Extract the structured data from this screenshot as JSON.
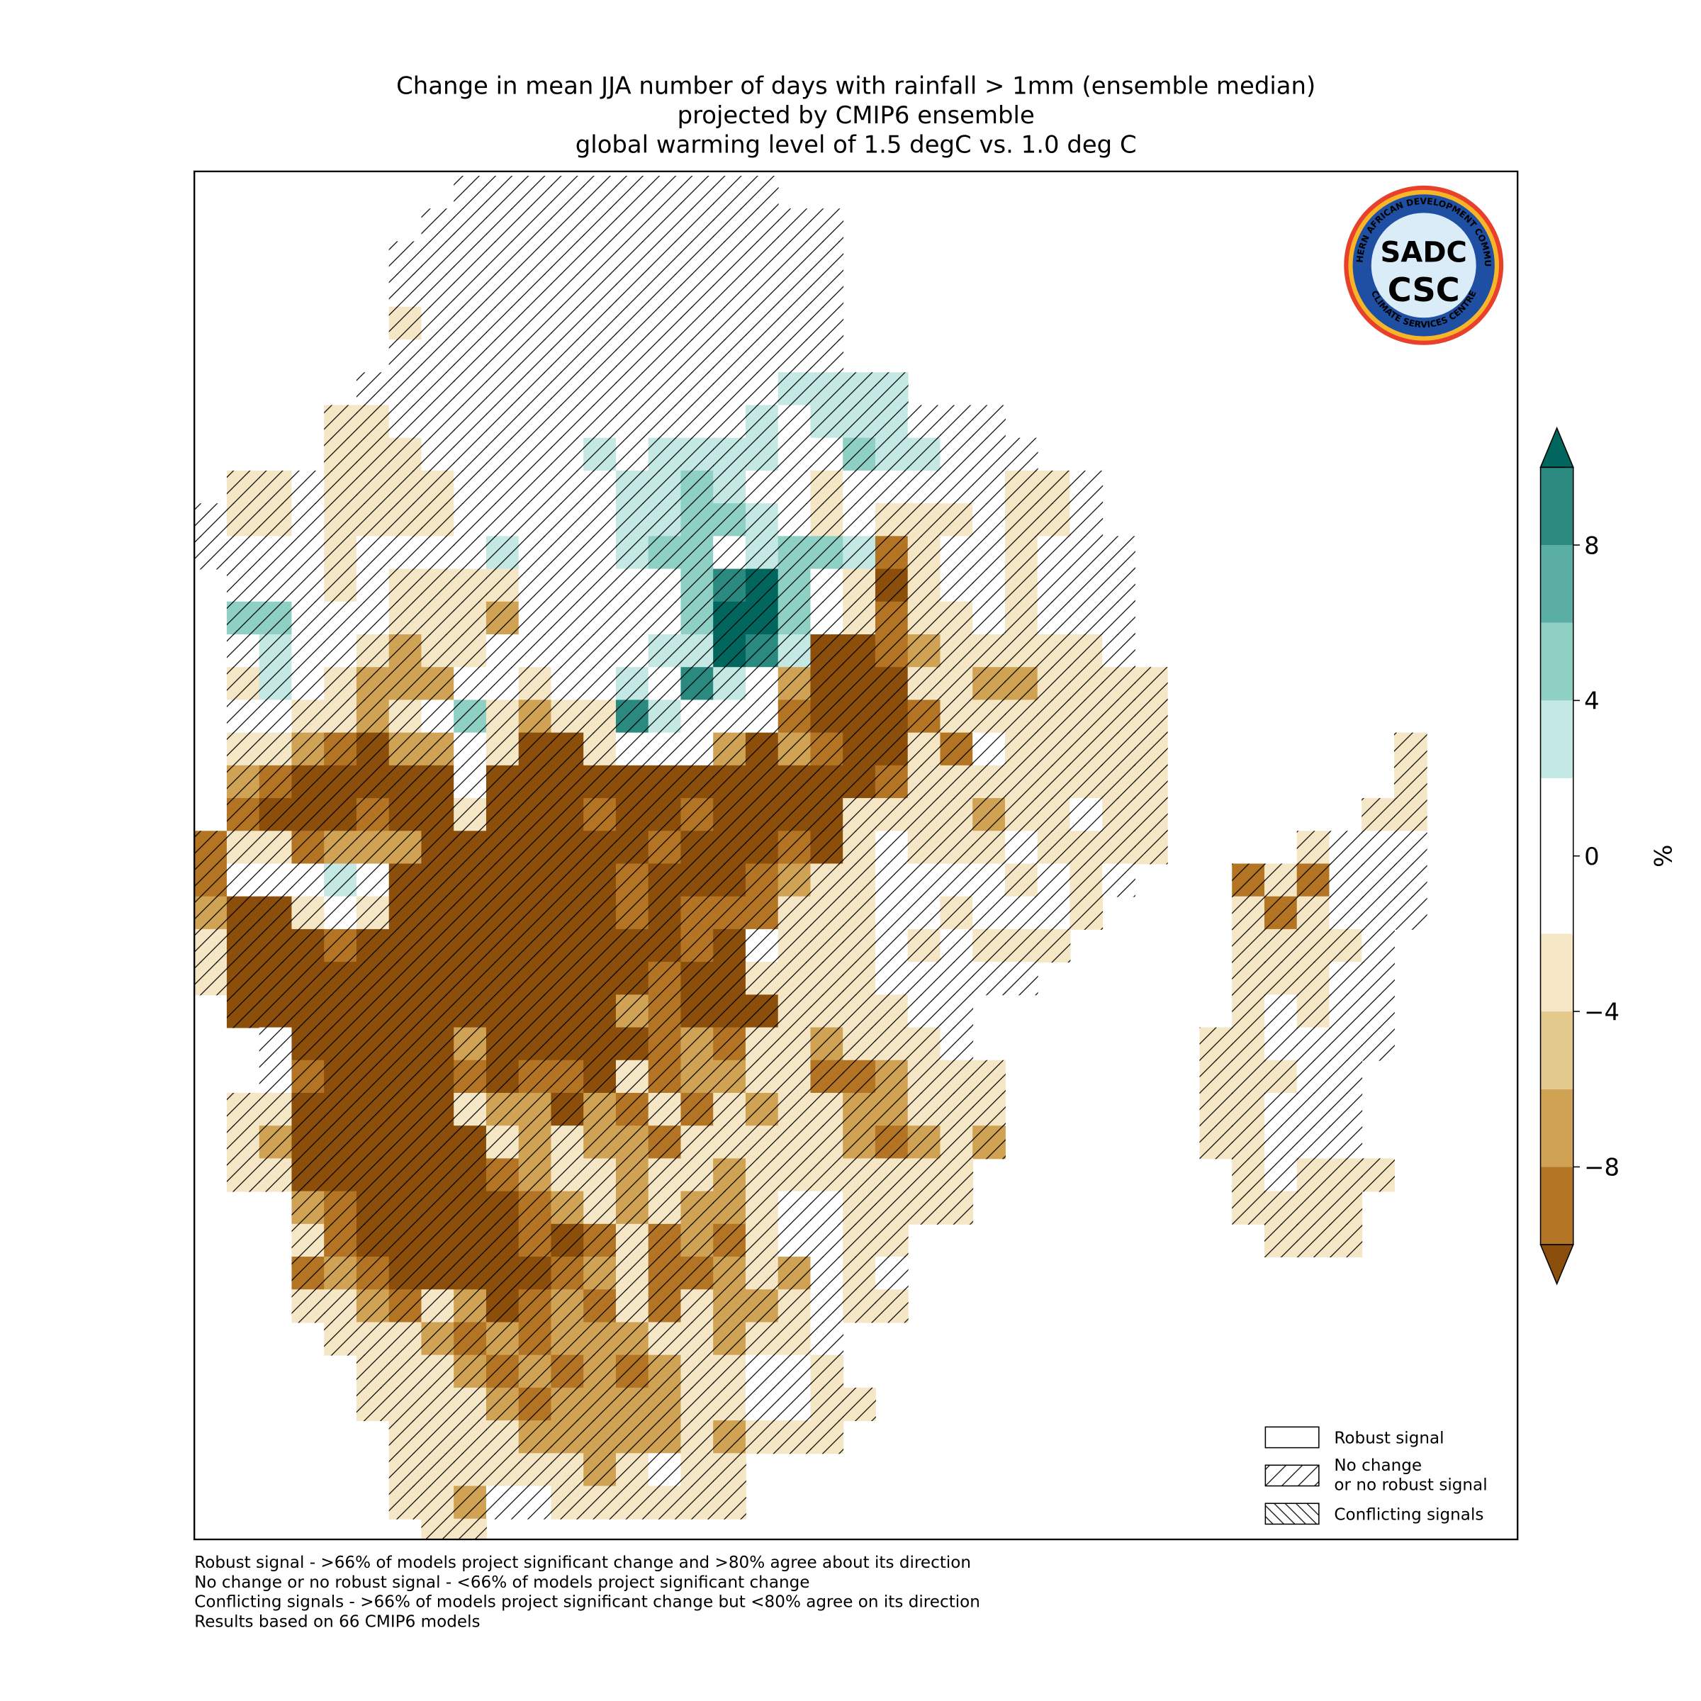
{
  "map": {
    "title": [
      "Change in mean JJA number of days with rainfall > 1mm (ensemble median)",
      "projected by CMIP6 ensemble",
      "global warming level of 1.5 degC vs. 1.0 deg C"
    ],
    "colorbar": {
      "levels": [
        -10,
        -8,
        -6,
        -4,
        -2,
        0,
        2,
        4,
        6,
        8,
        10
      ],
      "colors": [
        "#b37424",
        "#d0a253",
        "#e3c98b",
        "#f5e6c6",
        "#ffffff",
        "#ffffff",
        "#c4e8e3",
        "#8fd0c5",
        "#5aaea3",
        "#2a8a80"
      ],
      "under": "#8b4f0b",
      "over": "#01665e",
      "ticks": [
        {
          "value": -8,
          "label": "−8"
        },
        {
          "value": -4,
          "label": "−4"
        },
        0,
        4,
        8
      ],
      "label": "%"
    },
    "legend": [
      {
        "lines": [
          "Robust signal"
        ]
      },
      {
        "lines": [
          "No change",
          "or no robust signal"
        ]
      },
      {
        "lines": [
          "Conflicting signals"
        ]
      }
    ],
    "notes": [
      "Robust signal - >66% of models project significant change and >80% agree about its direction",
      "No change or no robust signal - <66% of models project significant change",
      "Conflicting signals - >66% of models project significant change but <80% agree on its direction",
      "Results based on 66 CMIP6 models"
    ],
    "logo": {
      "top": "SADC",
      "bottom": "CSC",
      "ring": [
        "SOUTHERN AFRICAN DEVELOPMENT COMMUNITY",
        "CLIMATE SERVICES CENTRE"
      ]
    },
    "grid": [
      [
        null,
        null,
        null,
        null,
        null,
        null,
        null,
        null,
        0,
        0,
        0,
        0,
        0,
        0,
        0,
        0,
        0,
        0
      ],
      [
        null,
        null,
        null,
        null,
        null,
        null,
        null,
        0,
        0,
        0,
        0,
        0,
        0,
        0,
        0,
        0,
        0,
        0,
        0,
        0
      ],
      [
        null,
        null,
        null,
        null,
        null,
        null,
        0,
        0,
        0,
        0,
        0,
        0,
        0,
        0,
        0,
        0,
        0,
        0,
        0,
        0
      ],
      [
        null,
        null,
        null,
        null,
        null,
        null,
        0,
        0,
        0,
        0,
        0,
        0,
        0,
        0,
        0,
        0,
        0,
        0,
        0,
        0
      ],
      [
        null,
        null,
        null,
        null,
        null,
        null,
        -3,
        0,
        0,
        0,
        0,
        0,
        0,
        0,
        0,
        0,
        0,
        0,
        0,
        0
      ],
      [
        null,
        null,
        null,
        null,
        null,
        null,
        0,
        0,
        0,
        0,
        0,
        0,
        0,
        0,
        0,
        0,
        0,
        0,
        0,
        0
      ],
      [
        null,
        null,
        null,
        null,
        null,
        0,
        0,
        0,
        0,
        0,
        0,
        0,
        0,
        0,
        0,
        0,
        0,
        0,
        3,
        3,
        3,
        3
      ],
      [
        null,
        null,
        null,
        null,
        -3,
        -3,
        0,
        0,
        0,
        0,
        0,
        0,
        0,
        0,
        0,
        0,
        0,
        3,
        0,
        3,
        3,
        3,
        0,
        0,
        0
      ],
      [
        null,
        null,
        null,
        null,
        -3,
        -3,
        -3,
        0,
        0,
        0,
        0,
        0,
        3,
        0,
        3,
        3,
        3,
        3,
        0,
        0,
        5,
        3,
        3,
        0,
        0,
        0
      ],
      [
        null,
        -3,
        -3,
        0,
        -3,
        -3,
        -3,
        -3,
        0,
        0,
        0,
        0,
        0,
        3,
        3,
        5,
        3,
        0,
        0,
        -3,
        0,
        0,
        0,
        0,
        0,
        -3,
        -3,
        0
      ],
      [
        0,
        -3,
        -3,
        0,
        -3,
        -3,
        -3,
        -3,
        0,
        0,
        0,
        0,
        0,
        3,
        3,
        5,
        5,
        3,
        0,
        -3,
        0,
        -3,
        -3,
        -3,
        0,
        -3,
        -3,
        0
      ],
      [
        0,
        0,
        0,
        0,
        -3,
        0,
        0,
        0,
        0,
        3,
        0,
        0,
        0,
        3,
        5,
        5,
        0,
        3,
        5,
        5,
        3,
        -9,
        -3,
        0,
        0,
        -3,
        0,
        0,
        0
      ],
      [
        null,
        0,
        0,
        0,
        -3,
        0,
        -3,
        -3,
        -3,
        -3,
        0,
        0,
        0,
        0,
        0,
        5,
        9,
        11,
        5,
        0,
        -3,
        -11,
        -3,
        0,
        0,
        -3,
        0,
        0,
        0
      ],
      [
        null,
        5,
        5,
        0,
        0,
        0,
        -3,
        -3,
        -3,
        -7,
        0,
        0,
        0,
        0,
        0,
        5,
        11,
        11,
        5,
        0,
        -3,
        -9,
        -3,
        -3,
        0,
        -3,
        0,
        0,
        0
      ],
      [
        null,
        0,
        3,
        0,
        0,
        -3,
        -7,
        -3,
        -3,
        0,
        0,
        0,
        0,
        0,
        3,
        3,
        11,
        9,
        3,
        -11,
        -11,
        -9,
        -7,
        -3,
        -3,
        -3,
        -3,
        -3,
        0
      ],
      [
        null,
        -3,
        3,
        0,
        -3,
        -7,
        -7,
        -7,
        0,
        0,
        -3,
        0,
        0,
        3,
        0,
        9,
        3,
        0,
        -7,
        -11,
        -11,
        -11,
        -3,
        -3,
        -7,
        -7,
        -3,
        -3,
        -3,
        -3
      ],
      [
        null,
        0,
        0,
        -3,
        -3,
        -7,
        -3,
        0,
        5,
        -3,
        -7,
        -3,
        -3,
        9,
        3,
        0,
        0,
        0,
        -9,
        -11,
        -11,
        -11,
        -9,
        -3,
        -3,
        -3,
        -3,
        -3,
        -3,
        -3
      ],
      [
        null,
        -3,
        -3,
        -7,
        -9,
        -11,
        -7,
        -7,
        0,
        -3,
        -11,
        -11,
        -3,
        0,
        0,
        0,
        -7,
        -11,
        -7,
        -9,
        -11,
        -11,
        -3,
        -9,
        0,
        -3,
        -3,
        -3,
        -3,
        -3,
        null,
        null,
        null,
        null,
        null,
        null,
        null,
        -3
      ],
      [
        null,
        -7,
        -9,
        -11,
        -11,
        -11,
        -11,
        -11,
        0,
        -11,
        -11,
        -11,
        -11,
        -11,
        -11,
        -11,
        -11,
        -11,
        -11,
        -11,
        -11,
        -9,
        -3,
        -3,
        -3,
        -3,
        -3,
        -3,
        -3,
        -3,
        null,
        null,
        null,
        null,
        null,
        null,
        null,
        -3
      ],
      [
        null,
        -9,
        -11,
        -11,
        -11,
        -9,
        -11,
        -11,
        -3,
        -11,
        -11,
        -11,
        -9,
        -11,
        -11,
        -9,
        -11,
        -11,
        -11,
        -11,
        -3,
        -3,
        -3,
        -3,
        -7,
        -3,
        -3,
        0,
        -3,
        -3,
        null,
        null,
        null,
        null,
        null,
        null,
        -3,
        -3
      ],
      [
        -9,
        -3,
        -3,
        -9,
        -7,
        -7,
        -7,
        -11,
        -11,
        -11,
        -11,
        -11,
        -11,
        -11,
        -9,
        -11,
        -11,
        -11,
        -9,
        -11,
        -3,
        0,
        -3,
        -3,
        -3,
        0,
        -3,
        -3,
        -3,
        -3,
        null,
        null,
        null,
        null,
        -3,
        0,
        0,
        0
      ],
      [
        -9,
        0,
        0,
        0,
        3,
        0,
        -11,
        -11,
        -11,
        -11,
        -11,
        -11,
        -11,
        -9,
        -11,
        -11,
        -11,
        -9,
        -7,
        -3,
        -3,
        0,
        0,
        0,
        0,
        -3,
        0,
        -3,
        0,
        null,
        null,
        null,
        -9,
        -3,
        -9,
        0,
        0,
        0
      ],
      [
        -7,
        -11,
        -11,
        -3,
        0,
        -3,
        -11,
        -11,
        -11,
        -11,
        -11,
        -11,
        -11,
        -9,
        -11,
        -9,
        -9,
        -9,
        -3,
        -3,
        -3,
        0,
        0,
        -3,
        0,
        0,
        0,
        -3,
        null,
        null,
        null,
        null,
        -3,
        -9,
        -3,
        0,
        0,
        0
      ],
      [
        -3,
        -11,
        -11,
        -11,
        -9,
        -11,
        -11,
        -11,
        -11,
        -11,
        -11,
        -11,
        -11,
        -11,
        -11,
        -9,
        -11,
        0,
        -3,
        -3,
        -3,
        0,
        -3,
        0,
        -3,
        -3,
        -3,
        null,
        null,
        null,
        null,
        null,
        -3,
        -3,
        -3,
        -3,
        0
      ],
      [
        -3,
        -11,
        -11,
        -11,
        -11,
        -11,
        -11,
        -11,
        -11,
        -11,
        -11,
        -11,
        -11,
        -11,
        -9,
        -11,
        -11,
        -3,
        -3,
        -3,
        -3,
        0,
        0,
        0,
        0,
        0,
        null,
        null,
        null,
        null,
        null,
        null,
        -3,
        -3,
        -3,
        0,
        0
      ],
      [
        null,
        -11,
        -11,
        -11,
        -11,
        -11,
        -11,
        -11,
        -11,
        -11,
        -11,
        -11,
        -11,
        -7,
        -9,
        -11,
        -11,
        -11,
        -3,
        -3,
        -3,
        -3,
        0,
        0,
        null,
        null,
        null,
        null,
        null,
        null,
        null,
        null,
        -3,
        0,
        -3,
        0,
        0
      ],
      [
        null,
        null,
        0,
        -11,
        -11,
        -11,
        -11,
        -11,
        -7,
        -11,
        -11,
        -11,
        -11,
        -11,
        -9,
        -7,
        -9,
        -3,
        -3,
        -7,
        -3,
        -3,
        -3,
        0,
        null,
        null,
        null,
        null,
        null,
        null,
        null,
        -3,
        -3,
        0,
        0,
        0,
        0
      ],
      [
        null,
        null,
        0,
        -9,
        -11,
        -11,
        -11,
        -11,
        -9,
        -11,
        -9,
        -9,
        -11,
        -3,
        -9,
        -7,
        -7,
        -3,
        -3,
        -9,
        -9,
        -7,
        -3,
        -3,
        -3,
        null,
        null,
        null,
        null,
        null,
        null,
        -3,
        -3,
        -3,
        0,
        0
      ],
      [
        null,
        -3,
        -3,
        -11,
        -11,
        -11,
        -11,
        -11,
        -3,
        -7,
        -7,
        -11,
        -7,
        -9,
        -3,
        -9,
        -3,
        -7,
        -3,
        -3,
        -7,
        -7,
        -3,
        -3,
        -3,
        null,
        null,
        null,
        null,
        null,
        null,
        -3,
        -3,
        0,
        0,
        0
      ],
      [
        null,
        -3,
        -7,
        -11,
        -11,
        -11,
        -11,
        -11,
        -11,
        -3,
        -7,
        -3,
        -7,
        -7,
        -9,
        -3,
        -3,
        -3,
        -3,
        -3,
        -7,
        -9,
        -7,
        -3,
        -7,
        null,
        null,
        null,
        null,
        null,
        null,
        -3,
        -3,
        0,
        0,
        0
      ],
      [
        null,
        -3,
        -3,
        -11,
        -11,
        -11,
        -11,
        -11,
        -11,
        -9,
        -7,
        -3,
        -3,
        -7,
        -3,
        -3,
        -7,
        -3,
        -3,
        -3,
        -3,
        -3,
        -3,
        -3,
        null,
        null,
        null,
        null,
        null,
        null,
        null,
        null,
        -3,
        0,
        -3,
        -3,
        -3
      ],
      [
        null,
        null,
        null,
        -7,
        -9,
        -11,
        -11,
        -11,
        -11,
        -11,
        -9,
        -7,
        -3,
        -7,
        -3,
        -7,
        -7,
        -3,
        0,
        0,
        -3,
        -3,
        -3,
        -3,
        null,
        null,
        null,
        null,
        null,
        null,
        null,
        null,
        -3,
        -3,
        -3,
        -3
      ],
      [
        null,
        null,
        null,
        -3,
        -9,
        -11,
        -11,
        -11,
        -11,
        -11,
        -9,
        -11,
        -9,
        -3,
        -9,
        -7,
        -9,
        -3,
        0,
        0,
        -3,
        -3,
        null,
        null,
        null,
        null,
        null,
        null,
        null,
        null,
        null,
        null,
        null,
        -3,
        -3,
        -3
      ],
      [
        null,
        null,
        null,
        -9,
        -7,
        -9,
        -11,
        -11,
        -11,
        -11,
        -11,
        -9,
        -7,
        -3,
        -9,
        -9,
        -7,
        -3,
        -7,
        0,
        -3,
        0
      ],
      [
        null,
        null,
        null,
        -3,
        -3,
        -7,
        -9,
        -3,
        -7,
        -11,
        -9,
        -7,
        -9,
        -3,
        -9,
        -3,
        -7,
        -7,
        -3,
        0,
        -3,
        -3
      ],
      [
        null,
        null,
        null,
        null,
        -3,
        -3,
        -3,
        -7,
        -9,
        -7,
        -9,
        -7,
        -7,
        -7,
        -3,
        -3,
        -7,
        -3,
        -3,
        0
      ],
      [
        null,
        null,
        null,
        null,
        null,
        -3,
        -3,
        -3,
        -7,
        -9,
        -7,
        -9,
        -7,
        -9,
        -7,
        -3,
        -3,
        0,
        0,
        -3
      ],
      [
        null,
        null,
        null,
        null,
        null,
        -3,
        -3,
        -3,
        -3,
        -7,
        -9,
        -7,
        -7,
        -7,
        -7,
        -3,
        -3,
        0,
        0,
        -3,
        -3
      ],
      [
        null,
        null,
        null,
        null,
        null,
        null,
        -3,
        -3,
        -3,
        -3,
        -7,
        -7,
        -7,
        -7,
        -7,
        -3,
        -7,
        -3,
        -3,
        -3
      ],
      [
        null,
        null,
        null,
        null,
        null,
        null,
        -3,
        -3,
        -3,
        -3,
        -3,
        -3,
        -7,
        -3,
        0,
        -3,
        -3
      ],
      [
        null,
        null,
        null,
        null,
        null,
        null,
        -3,
        -3,
        -7,
        0,
        0,
        -3,
        -3,
        -3,
        -3,
        -3,
        -3
      ],
      [
        null,
        null,
        null,
        null,
        null,
        null,
        null,
        -3,
        -3
      ]
    ]
  }
}
